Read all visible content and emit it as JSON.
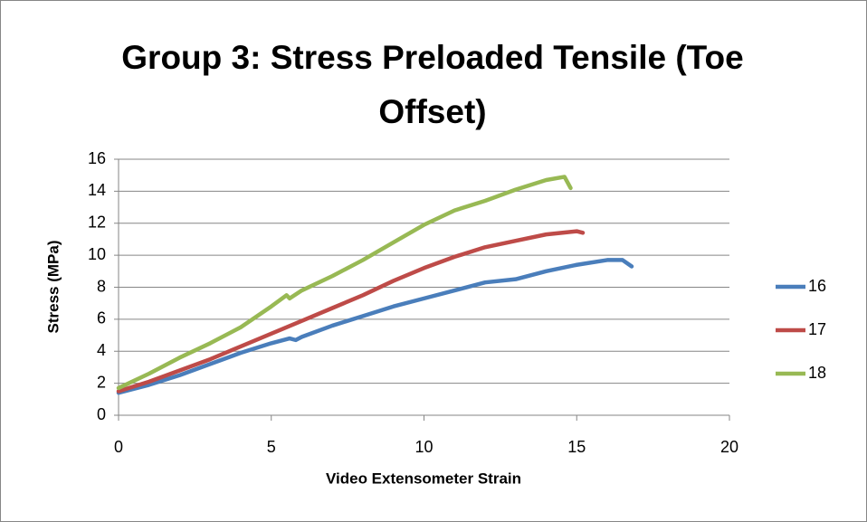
{
  "chart_data": {
    "type": "line",
    "title": "Group 3: Stress Preloaded Tensile (Toe Offset)",
    "x_label": "Video Extensometer Strain",
    "y_label": "Stress (MPa)",
    "xlim": [
      0,
      20
    ],
    "xticks": [
      0,
      5,
      10,
      15,
      20
    ],
    "ylim": [
      0,
      16
    ],
    "yticks": [
      0,
      2,
      4,
      6,
      8,
      10,
      12,
      14,
      16
    ],
    "grid": true,
    "legend": "right",
    "series": [
      {
        "name": "16",
        "color": "#4a7ebb",
        "x": [
          0,
          1,
          2,
          3,
          4,
          5,
          5.6,
          5.8,
          6,
          7,
          8,
          9,
          10,
          11,
          12,
          13,
          14,
          15,
          16,
          16.5,
          16.8
        ],
        "values": [
          1.4,
          1.9,
          2.5,
          3.2,
          3.9,
          4.5,
          4.8,
          4.7,
          4.9,
          5.6,
          6.2,
          6.8,
          7.3,
          7.8,
          8.3,
          8.5,
          9.0,
          9.4,
          9.7,
          9.7,
          9.3
        ]
      },
      {
        "name": "17",
        "color": "#be4b48",
        "x": [
          0,
          1,
          2,
          3,
          4,
          5,
          6,
          7,
          8,
          9,
          10,
          11,
          12,
          13,
          14,
          14.5,
          15,
          15.2
        ],
        "values": [
          1.5,
          2.1,
          2.8,
          3.5,
          4.3,
          5.1,
          5.9,
          6.7,
          7.5,
          8.4,
          9.2,
          9.9,
          10.5,
          10.9,
          11.3,
          11.4,
          11.5,
          11.4
        ]
      },
      {
        "name": "18",
        "color": "#98b954",
        "x": [
          0,
          1,
          2,
          3,
          4,
          5,
          5.5,
          5.6,
          6,
          7,
          8,
          9,
          10,
          11,
          12,
          13,
          14,
          14.6,
          14.8
        ],
        "values": [
          1.7,
          2.6,
          3.6,
          4.5,
          5.5,
          6.8,
          7.5,
          7.3,
          7.8,
          8.7,
          9.7,
          10.8,
          11.9,
          12.8,
          13.4,
          14.1,
          14.7,
          14.9,
          14.2
        ]
      }
    ]
  }
}
